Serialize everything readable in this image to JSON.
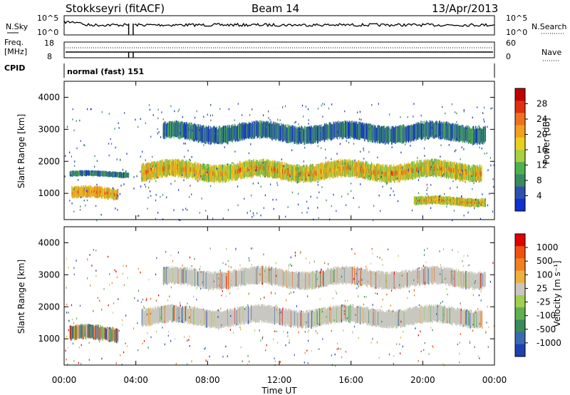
{
  "header": {
    "station": "Stokkseyri (fitACF)",
    "beam": "Beam 14",
    "date": "13/Apr/2013"
  },
  "summary": {
    "nsky_label": "N.Sky",
    "nsearch_label": "N.Search",
    "nsky_ticks": [
      "10^5",
      "10^0"
    ],
    "nsearch_ticks": [
      "10^5",
      "10^0"
    ],
    "freq_label": "Freq.",
    "freq_unit": "[MHz]",
    "freq_ticks": [
      "18",
      "8"
    ],
    "nave_label": "Nave",
    "nave_ticks": [
      "60",
      "0"
    ],
    "cpid_label": "CPID",
    "cpid_text": "normal (fast) 151"
  },
  "chart_data": [
    {
      "type": "heatmap",
      "name": "power",
      "ylabel": "Slant Range [km]",
      "xlabel": "Time UT",
      "xlim": [
        0,
        24
      ],
      "ylim": [
        180,
        4500
      ],
      "x_ticks": [
        "00:00",
        "04:00",
        "08:00",
        "12:00",
        "16:00",
        "20:00",
        "00:00"
      ],
      "y_ticks": [
        1000,
        2000,
        3000,
        4000
      ],
      "colorbar": {
        "label": "Power [dB]",
        "ticks": [
          "28",
          "24",
          "20",
          "16",
          "12",
          "8",
          "4"
        ],
        "colors": [
          "#1030d0",
          "#3050b0",
          "#3a8a60",
          "#50b050",
          "#a8d040",
          "#e8d020",
          "#f0a020",
          "#f07020",
          "#e03010",
          "#c00000"
        ]
      },
      "features": [
        {
          "t0": 0.3,
          "t1": 3.6,
          "r0": 1500,
          "r1": 1700,
          "level": "low"
        },
        {
          "t0": 0.4,
          "t1": 3.0,
          "r0": 800,
          "r1": 1200,
          "level": "mid"
        },
        {
          "t0": 4.3,
          "t1": 23.3,
          "r0": 1400,
          "r1": 2000,
          "level": "high"
        },
        {
          "t0": 5.5,
          "t1": 23.5,
          "r0": 2600,
          "r1": 3200,
          "level": "low"
        },
        {
          "t0": 19.5,
          "t1": 23.5,
          "r0": 600,
          "r1": 900,
          "level": "high"
        }
      ]
    },
    {
      "type": "heatmap",
      "name": "velocity",
      "ylabel": "Slant Range [km]",
      "xlabel": "Time UT",
      "xlim": [
        0,
        24
      ],
      "ylim": [
        180,
        4500
      ],
      "x_ticks": [
        "00:00",
        "04:00",
        "08:00",
        "12:00",
        "16:00",
        "20:00",
        "00:00"
      ],
      "y_ticks": [
        1000,
        2000,
        3000,
        4000
      ],
      "colorbar": {
        "label": "Velocity [m s⁻¹]",
        "ticks": [
          "1000",
          "500",
          "100",
          "25",
          "-25",
          "-100",
          "-500",
          "-1000"
        ],
        "colors": [
          "#2040b0",
          "#3a6ab0",
          "#3a8a5a",
          "#60b050",
          "#a0d050",
          "#c8c8c0",
          "#f0b040",
          "#f08020",
          "#f05010",
          "#e00000"
        ]
      },
      "features": [
        {
          "t0": 0.3,
          "t1": 3.0,
          "r0": 900,
          "r1": 1400,
          "level": "mixed"
        },
        {
          "t0": 4.3,
          "t1": 23.3,
          "r0": 1400,
          "r1": 2000,
          "level": "grey"
        },
        {
          "t0": 5.5,
          "t1": 23.5,
          "r0": 2600,
          "r1": 3200,
          "level": "grey"
        }
      ]
    }
  ],
  "summary_series": {
    "time_gap": [
      3.6,
      3.85
    ]
  }
}
